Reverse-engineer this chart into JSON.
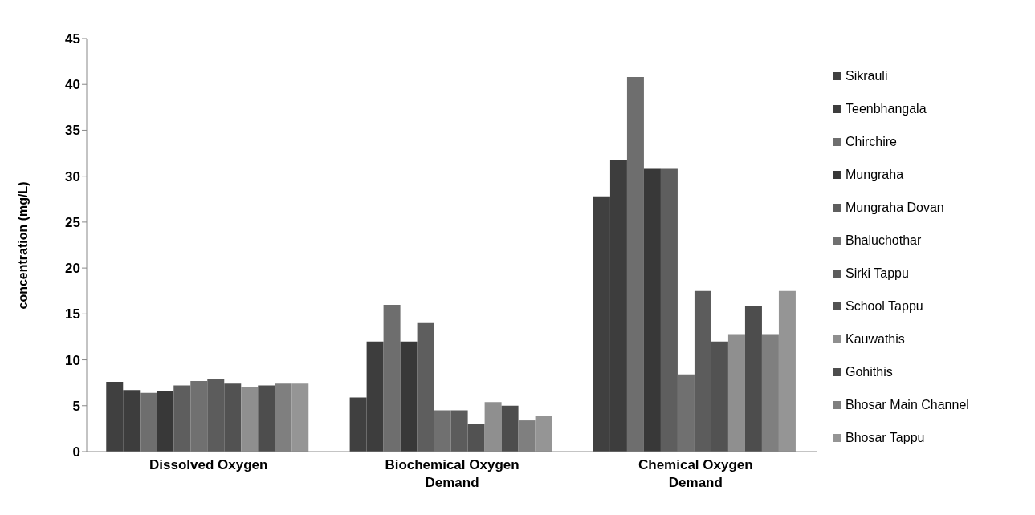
{
  "chart_data": {
    "type": "bar",
    "ylabel": "concentration (mg/L)",
    "categories": [
      "Dissolved Oxygen",
      "Biochemical Oxygen Demand",
      "Chemical Oxygen Demand"
    ],
    "series": [
      {
        "name": "Sikrauli",
        "color": "#404040",
        "values": [
          7.6,
          5.9,
          27.8
        ]
      },
      {
        "name": "Teenbhangala",
        "color": "#3d3d3d",
        "values": [
          6.7,
          12,
          31.8
        ]
      },
      {
        "name": "Chirchire",
        "color": "#6e6e6e",
        "values": [
          6.4,
          16,
          40.8
        ]
      },
      {
        "name": "Mungraha",
        "color": "#383838",
        "values": [
          6.6,
          12,
          30.8
        ]
      },
      {
        "name": "Mungraha Dovan",
        "color": "#5e5e5e",
        "values": [
          7.2,
          14,
          30.8
        ]
      },
      {
        "name": "Bhaluchothar",
        "color": "#707070",
        "values": [
          7.7,
          4.5,
          8.4
        ]
      },
      {
        "name": "Sirki Tappu",
        "color": "#5c5c5c",
        "values": [
          7.9,
          4.5,
          17.5
        ]
      },
      {
        "name": "School Tappu",
        "color": "#525252",
        "values": [
          7.4,
          3,
          12
        ]
      },
      {
        "name": "Kauwathis",
        "color": "#8f8f8f",
        "values": [
          7,
          5.4,
          12.8
        ]
      },
      {
        "name": "Gohithis",
        "color": "#4d4d4d",
        "values": [
          7.2,
          5,
          15.9
        ]
      },
      {
        "name": "Bhosar Main Channel",
        "color": "#7f7f7f",
        "values": [
          7.4,
          3.4,
          12.8
        ]
      },
      {
        "name": "Bhosar Tappu",
        "color": "#959595",
        "values": [
          7.4,
          3.9,
          17.5
        ]
      }
    ],
    "ylim": [
      0,
      45
    ],
    "yticks": [
      0,
      5,
      10,
      15,
      20,
      25,
      30,
      35,
      40,
      45
    ],
    "grid": false,
    "legend": "right"
  }
}
